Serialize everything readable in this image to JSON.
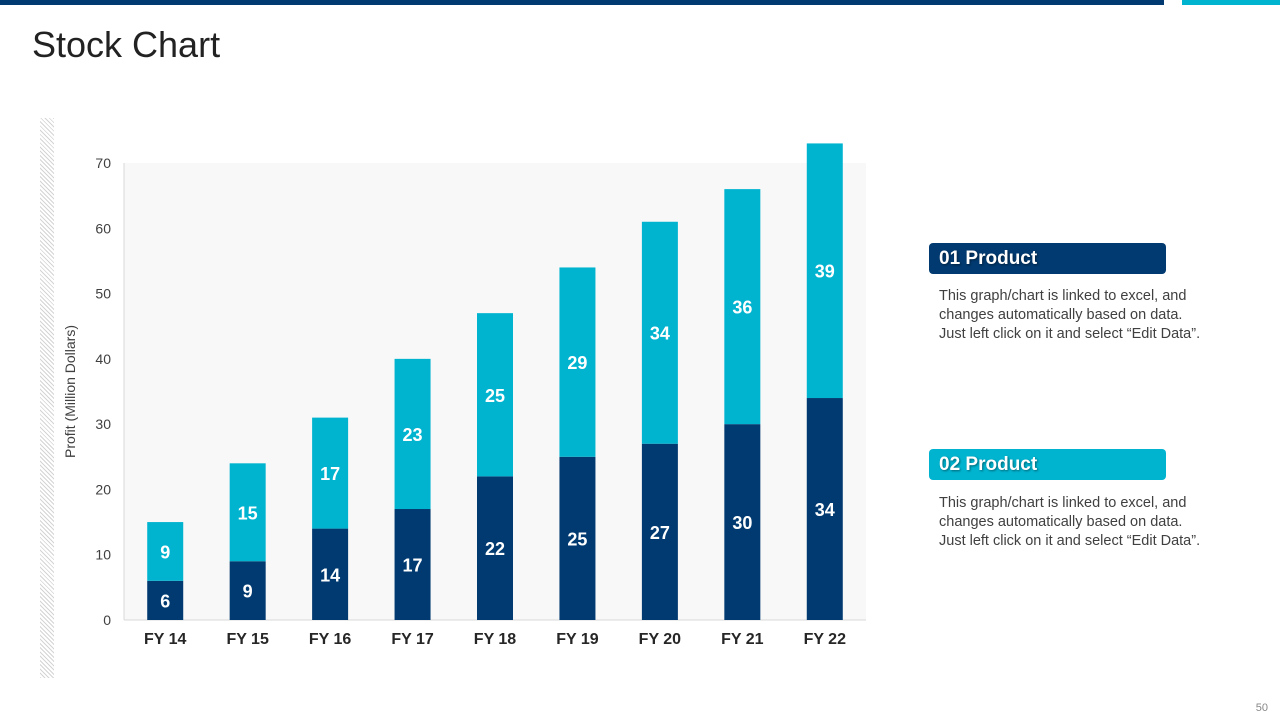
{
  "slide": {
    "title": "Stock Chart",
    "page_number": "50"
  },
  "legend": [
    {
      "label": "01 Product",
      "description_lines": [
        "This graph/chart is linked to excel, and",
        "changes automatically based on data.",
        "Just left click on it and select “Edit Data”."
      ]
    },
    {
      "label": "02 Product",
      "description_lines": [
        "This graph/chart is linked to excel, and",
        "changes automatically based on data.",
        "Just left click on it and select “Edit Data”."
      ]
    }
  ],
  "colors": {
    "product_01": "#003a70",
    "product_02": "#00b4d0",
    "plot_bg": "#f8f8f8",
    "axis": "#d9d9d9",
    "tick_text": "#404040",
    "category_text": "#262626"
  },
  "chart_data": {
    "type": "bar",
    "stacked": true,
    "title": "",
    "xlabel": "",
    "ylabel": "Profit  (Million Dollars)",
    "ylim": [
      0,
      70
    ],
    "yticks": [
      0,
      10,
      20,
      30,
      40,
      50,
      60,
      70
    ],
    "categories": [
      "FY 14",
      "FY 15",
      "FY 16",
      "FY 17",
      "FY 18",
      "FY 19",
      "FY 20",
      "FY 21",
      "FY 22"
    ],
    "series": [
      {
        "name": "01 Product",
        "values": [
          6,
          9,
          14,
          17,
          22,
          25,
          27,
          30,
          34
        ]
      },
      {
        "name": "02 Product",
        "values": [
          9,
          15,
          17,
          23,
          25,
          29,
          34,
          36,
          39
        ]
      }
    ]
  }
}
